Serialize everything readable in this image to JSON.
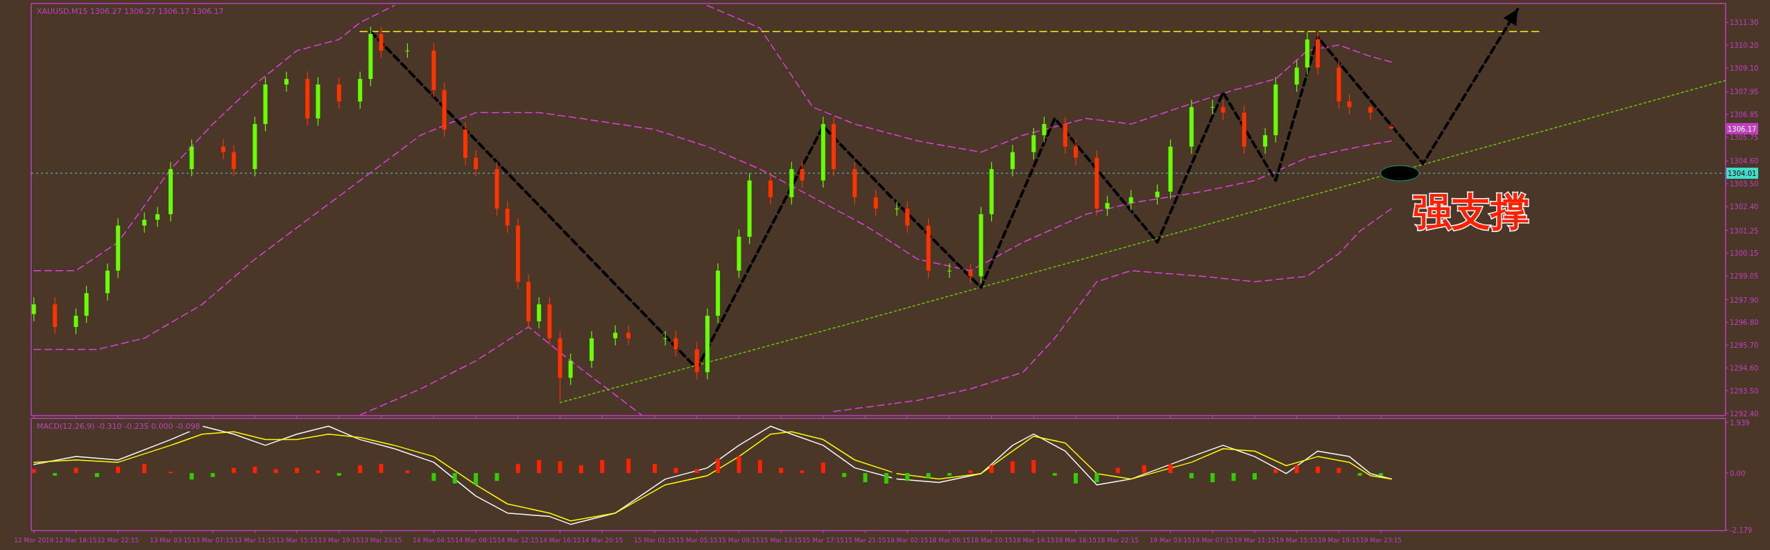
{
  "chart_data": [
    {
      "type": "candlestick",
      "title": "XAUUSD,M15  1306.27 1306.27 1306.17 1306.17",
      "x": [
        "2019-03-12T14:15",
        "2019-03-12T16:15",
        "2019-03-12T18:15",
        "2019-03-12T19:15",
        "2019-03-12T21:15",
        "2019-03-12T22:15",
        "2019-03-13T00:45",
        "2019-03-13T02:00",
        "2019-03-13T03:15",
        "2019-03-13T05:15",
        "2019-03-13T08:15",
        "2019-03-13T09:15",
        "2019-03-13T11:15",
        "2019-03-13T12:15",
        "2019-03-13T14:15",
        "2019-03-13T16:15",
        "2019-03-13T17:15",
        "2019-03-13T19:15",
        "2019-03-13T21:15",
        "2019-03-13T22:15",
        "2019-03-13T23:15",
        "2019-03-14T01:45",
        "2019-03-14T04:15",
        "2019-03-14T05:15",
        "2019-03-14T07:15",
        "2019-03-14T08:15",
        "2019-03-14T10:15",
        "2019-03-14T11:15",
        "2019-03-14T12:15",
        "2019-03-14T13:15",
        "2019-03-14T14:15",
        "2019-03-14T15:15",
        "2019-03-14T16:15",
        "2019-03-14T17:15",
        "2019-03-14T19:15",
        "2019-03-14T21:30",
        "2019-03-14T22:45",
        "2019-03-15T02:15",
        "2019-03-15T03:15",
        "2019-03-15T05:15",
        "2019-03-15T06:15",
        "2019-03-15T07:15",
        "2019-03-15T09:15",
        "2019-03-15T10:15",
        "2019-03-15T12:15",
        "2019-03-15T14:15",
        "2019-03-15T15:15",
        "2019-03-15T17:15",
        "2019-03-15T18:15",
        "2019-03-15T20:15",
        "2019-03-15T22:15"
      ],
      "ohlc": [
        [
          1297.2,
          1298.02,
          1296.85,
          1297.67
        ],
        [
          1297.67,
          1298.02,
          1296.23,
          1296.58
        ],
        [
          1296.58,
          1297.47,
          1296.23,
          1297.12
        ],
        [
          1297.12,
          1298.56,
          1296.77,
          1298.21
        ],
        [
          1298.21,
          1299.65,
          1297.86,
          1299.3
        ],
        [
          1299.3,
          1301.83,
          1298.95,
          1301.48
        ],
        [
          1301.48,
          1302.11,
          1301.13,
          1301.76
        ],
        [
          1301.76,
          1302.38,
          1301.41,
          1302.03
        ],
        [
          1302.03,
          1304.56,
          1301.68,
          1304.21
        ],
        [
          1304.21,
          1305.65,
          1303.86,
          1305.3
        ],
        [
          1305.3,
          1305.65,
          1304.68,
          1305.03
        ],
        [
          1305.03,
          1305.38,
          1303.86,
          1304.21
        ],
        [
          1304.21,
          1306.74,
          1303.86,
          1306.39
        ],
        [
          1306.39,
          1308.65,
          1306.04,
          1308.3
        ],
        [
          1308.3,
          1308.92,
          1307.95,
          1308.57
        ],
        [
          1308.57,
          1308.92,
          1306.31,
          1306.66
        ],
        [
          1306.66,
          1308.65,
          1306.31,
          1308.3
        ],
        [
          1308.3,
          1308.65,
          1307.13,
          1307.48
        ],
        [
          1307.48,
          1308.92,
          1307.13,
          1308.57
        ],
        [
          1308.57,
          1311.1,
          1308.22,
          1310.75
        ],
        [
          1310.75,
          1311.1,
          1309.59,
          1309.94
        ],
        [
          1309.94,
          1310.29,
          1309.59,
          1309.94
        ],
        [
          1309.94,
          1310.29,
          1307.68,
          1308.03
        ],
        [
          1308.03,
          1308.38,
          1305.77,
          1306.12
        ],
        [
          1306.12,
          1306.47,
          1304.41,
          1304.76
        ],
        [
          1304.76,
          1305.11,
          1303.86,
          1304.21
        ],
        [
          1304.21,
          1304.56,
          1301.95,
          1302.3
        ],
        [
          1302.3,
          1302.65,
          1301.13,
          1301.48
        ],
        [
          1301.48,
          1301.83,
          1298.41,
          1298.76
        ],
        [
          1298.76,
          1299.11,
          1296.5,
          1296.85
        ],
        [
          1296.85,
          1298.02,
          1296.5,
          1297.67
        ],
        [
          1297.67,
          1298.02,
          1295.68,
          1296.03
        ],
        [
          1296.03,
          1296.38,
          1293.0,
          1294.12
        ],
        [
          1294.12,
          1295.29,
          1293.77,
          1294.94
        ],
        [
          1294.94,
          1296.38,
          1294.59,
          1296.03
        ],
        [
          1296.03,
          1296.65,
          1295.68,
          1296.3
        ],
        [
          1296.3,
          1296.65,
          1295.68,
          1296.03
        ],
        [
          1296.03,
          1296.38,
          1295.68,
          1296.03
        ],
        [
          1296.03,
          1296.38,
          1295.14,
          1295.49
        ],
        [
          1295.49,
          1295.84,
          1294.04,
          1294.39
        ],
        [
          1294.39,
          1297.47,
          1294.04,
          1297.12
        ],
        [
          1297.12,
          1299.65,
          1296.77,
          1299.3
        ],
        [
          1299.3,
          1301.29,
          1298.95,
          1300.94
        ],
        [
          1300.94,
          1304.01,
          1300.59,
          1303.66
        ],
        [
          1303.66,
          1304.01,
          1302.5,
          1302.85
        ],
        [
          1302.85,
          1304.56,
          1302.5,
          1304.21
        ],
        [
          1304.21,
          1304.56,
          1303.31,
          1303.66
        ],
        [
          1303.66,
          1306.74,
          1303.31,
          1306.39
        ],
        [
          1306.39,
          1306.74,
          1303.86,
          1304.21
        ],
        [
          1304.21,
          1304.56,
          1302.5,
          1302.85
        ],
        [
          1302.85,
          1303.2,
          1301.95,
          1302.3
        ]
      ],
      "colors": [
        "#66ff00",
        "#ff3300",
        "#66ff00",
        "#66ff00",
        "#66ff00",
        "#66ff00",
        "#66ff00",
        "#66ff00",
        "#66ff00",
        "#66ff00",
        "#ff3300",
        "#ff3300",
        "#66ff00",
        "#66ff00",
        "#66ff00",
        "#ff3300",
        "#66ff00",
        "#ff3300",
        "#66ff00",
        "#66ff00",
        "#ff3300",
        "#66ff00",
        "#ff3300",
        "#ff3300",
        "#ff3300",
        "#ff3300",
        "#ff3300",
        "#ff3300",
        "#ff3300",
        "#ff3300",
        "#66ff00",
        "#ff3300",
        "#ff3300",
        "#66ff00",
        "#66ff00",
        "#66ff00",
        "#ff3300",
        "#66ff00",
        "#ff3300",
        "#ff3300",
        "#66ff00",
        "#66ff00",
        "#66ff00",
        "#66ff00",
        "#ff3300",
        "#66ff00",
        "#ff3300",
        "#66ff00",
        "#ff3300",
        "#ff3300",
        "#ff3300"
      ],
      "series": [
        {
          "type": "line",
          "color": "#e040e0",
          "line_style": "dashed",
          "x": [
            "2019-03-12T14:15",
            "2019-03-12T18:15",
            "2019-03-12T22:15",
            "2019-03-13T03:15",
            "2019-03-13T07:15",
            "2019-03-13T11:15",
            "2019-03-13T15:15",
            "2019-03-13T19:15",
            "2019-03-13T21:15",
            "2019-03-14T00:30",
            "2019-03-14T08:15",
            "2019-03-15T06:15",
            "2019-03-15T11:15",
            "2019-03-15T16:15",
            "2019-03-15T20:15",
            "2019-03-15T23:45"
          ],
          "values": [
            1299.3,
            1299.3,
            1300.67,
            1304.21,
            1306.39,
            1308.3,
            1309.94,
            1310.48,
            1311.3,
            1312.12,
            null,
            1312.12,
            1311.03,
            1307.21,
            1306.39,
            1305.91
          ]
        },
        {
          "type": "line",
          "color": "#e040e0",
          "line_style": "dashed",
          "x": [
            "2019-03-12T14:15",
            "2019-03-12T20:15",
            "2019-03-13T00:45",
            "2019-03-13T06:15",
            "2019-03-13T11:15",
            "2019-03-13T16:15",
            "2019-03-13T21:15",
            "2019-03-14T03:00",
            "2019-03-14T08:15",
            "2019-03-14T14:15",
            "2019-03-14T18:15",
            "2019-03-15T01:15",
            "2019-03-15T06:15",
            "2019-03-15T11:15",
            "2019-03-15T16:15",
            "2019-03-15T21:15",
            "2019-03-15T23:45"
          ],
          "values": [
            1295.49,
            1295.49,
            1296.03,
            1297.67,
            1299.85,
            1301.76,
            1303.66,
            1305.85,
            1306.94,
            1306.94,
            1306.66,
            1306.12,
            1305.3,
            1304.21,
            1302.85,
            1301.48,
            1300.67
          ]
        },
        {
          "type": "line",
          "color": "#e040e0",
          "line_style": "dashed",
          "x": [
            "2019-03-13T21:15",
            "2019-03-14T03:00",
            "2019-03-14T08:15",
            "2019-03-14T13:15",
            "2019-03-14T17:15",
            "2019-03-15T00:00",
            "2019-03-15T06:15",
            "2019-03-15T18:15",
            "2019-03-15T23:45"
          ],
          "values": [
            1292.32,
            1293.58,
            1294.94,
            1296.58,
            1294.94,
            1292.32,
            null,
            1292.49,
            1292.86
          ]
        },
        {
          "type": "line",
          "color": "#66cc00",
          "line_style": "dotted",
          "x": [
            "2019-03-14T16:15",
            "2019-03-15T23:45"
          ],
          "values": [
            1292.92,
            1297.29
          ]
        },
        {
          "type": "line",
          "color": "#ffff00",
          "line_style": "dashed",
          "x": [
            "2019-03-13T21:15",
            "2019-03-15T23:45"
          ],
          "values": [
            1310.86,
            1310.86
          ]
        },
        {
          "type": "line",
          "color": "#000000",
          "line_style": "dashed",
          "x": [
            "2019-03-13T22:15",
            "2019-03-15T05:15",
            "2019-03-15T17:15",
            "2019-03-15T23:45"
          ],
          "values": [
            1310.86,
            1294.56,
            1306.28,
            1302.84
          ]
        }
      ],
      "ref_lines": [
        {
          "axis": "y",
          "value": 1304.01,
          "color": "#40e0d0",
          "line_style": "dotted"
        }
      ],
      "xlim": [
        "2019-03-12T14:00",
        "2019-03-16T00:00"
      ],
      "ylim": [
        1292.29,
        1312.22
      ],
      "xticks": [
        {
          "value": "2019-03-12T14:15",
          "label": null
        },
        {
          "value": "2019-03-12T18:15",
          "label": null
        },
        {
          "value": "2019-03-12T22:15",
          "label": null
        },
        {
          "value": "2019-03-13T03:15",
          "label": null
        },
        {
          "value": "2019-03-13T07:15",
          "label": null
        },
        {
          "value": "2019-03-13T11:15",
          "label": null
        },
        {
          "value": "2019-03-13T15:15",
          "label": null
        },
        {
          "value": "2019-03-13T19:15",
          "label": null
        },
        {
          "value": "2019-03-13T23:15",
          "label": null
        },
        {
          "value": "2019-03-14T04:15",
          "label": null
        },
        {
          "value": "2019-03-14T08:15",
          "label": null
        },
        {
          "value": "2019-03-14T12:15",
          "label": null
        },
        {
          "value": "2019-03-14T16:15",
          "label": null
        },
        {
          "value": "2019-03-14T20:15",
          "label": null
        },
        {
          "value": "2019-03-15T01:15",
          "label": null
        },
        {
          "value": "2019-03-15T05:15",
          "label": null
        },
        {
          "value": "2019-03-15T09:15",
          "label": null
        },
        {
          "value": "2019-03-15T13:15",
          "label": null
        },
        {
          "value": "2019-03-15T17:15",
          "label": null
        },
        {
          "value": "2019-03-15T21:15",
          "label": null
        }
      ],
      "tick_labels": false
    },
    {
      "type": "candlestick",
      "x": [
        "2019-03-18T01:15",
        "2019-03-18T02:15",
        "2019-03-18T04:15",
        "2019-03-18T06:15",
        "2019-03-18T08:15",
        "2019-03-18T09:15",
        "2019-03-18T10:15",
        "2019-03-18T12:15",
        "2019-03-18T14:15",
        "2019-03-18T15:15",
        "2019-03-18T17:15",
        "2019-03-18T18:15",
        "2019-03-18T20:15",
        "2019-03-18T21:15",
        "2019-03-18T23:30",
        "2019-03-19T02:00",
        "2019-03-19T03:15",
        "2019-03-19T05:15",
        "2019-03-19T07:15",
        "2019-03-19T08:15",
        "2019-03-19T10:15",
        "2019-03-19T12:15",
        "2019-03-19T13:15",
        "2019-03-19T15:15",
        "2019-03-19T16:15",
        "2019-03-19T17:15",
        "2019-03-19T19:15",
        "2019-03-19T20:15",
        "2019-03-19T22:15",
        "2019-03-20T00:15"
      ],
      "ohlc": [
        [
          1302.3,
          1302.65,
          1301.95,
          1302.3
        ],
        [
          1302.3,
          1302.65,
          1301.13,
          1301.48
        ],
        [
          1301.48,
          1301.83,
          1298.95,
          1299.3
        ],
        [
          1299.3,
          1299.65,
          1298.95,
          1299.3
        ],
        [
          1299.3,
          1299.65,
          1298.68,
          1299.03
        ],
        [
          1299.03,
          1302.38,
          1298.68,
          1302.03
        ],
        [
          1302.03,
          1304.56,
          1301.68,
          1304.21
        ],
        [
          1304.21,
          1305.38,
          1303.86,
          1305.03
        ],
        [
          1305.03,
          1306.2,
          1304.68,
          1305.85
        ],
        [
          1305.85,
          1306.74,
          1305.5,
          1306.39
        ],
        [
          1306.39,
          1306.74,
          1304.95,
          1305.3
        ],
        [
          1305.3,
          1305.65,
          1304.41,
          1304.76
        ],
        [
          1304.76,
          1305.11,
          1301.95,
          1302.3
        ],
        [
          1302.3,
          1302.92,
          1301.95,
          1302.57
        ],
        [
          1302.57,
          1303.2,
          1302.22,
          1302.85
        ],
        [
          1302.85,
          1303.47,
          1302.5,
          1303.12
        ],
        [
          1303.12,
          1305.65,
          1302.77,
          1305.3
        ],
        [
          1305.3,
          1307.56,
          1304.95,
          1307.21
        ],
        [
          1307.21,
          1307.56,
          1306.86,
          1307.21
        ],
        [
          1307.21,
          1307.56,
          1306.59,
          1306.94
        ],
        [
          1306.94,
          1307.29,
          1304.95,
          1305.3
        ],
        [
          1305.3,
          1306.2,
          1304.95,
          1305.85
        ],
        [
          1305.85,
          1308.65,
          1305.5,
          1308.3
        ],
        [
          1308.3,
          1309.47,
          1307.95,
          1309.12
        ],
        [
          1309.12,
          1310.83,
          1308.77,
          1310.48
        ],
        [
          1310.48,
          1310.83,
          1308.77,
          1309.12
        ],
        [
          1309.12,
          1309.47,
          1307.13,
          1307.48
        ],
        [
          1307.48,
          1307.83,
          1306.86,
          1307.21
        ],
        [
          1307.21,
          1307.29,
          1306.59,
          1306.94
        ],
        [
          1306.27,
          1306.27,
          1306.17,
          1306.17
        ]
      ],
      "colors": [
        "#66ff00",
        "#ff3300",
        "#ff3300",
        "#66ff00",
        "#ff3300",
        "#66ff00",
        "#66ff00",
        "#66ff00",
        "#66ff00",
        "#66ff00",
        "#ff3300",
        "#ff3300",
        "#ff3300",
        "#66ff00",
        "#66ff00",
        "#66ff00",
        "#66ff00",
        "#66ff00",
        "#66ff00",
        "#ff3300",
        "#ff3300",
        "#66ff00",
        "#66ff00",
        "#66ff00",
        "#66ff00",
        "#ff3300",
        "#ff3300",
        "#ff3300",
        "#ff3300",
        "#ff3300"
      ],
      "series": [
        {
          "type": "line",
          "color": "#e040e0",
          "line_style": "dashed",
          "x": [
            "2019-03-18T01:00",
            "2019-03-18T03:15",
            "2019-03-18T09:15",
            "2019-03-18T13:15",
            "2019-03-18T19:15",
            "2019-03-18T23:30",
            "2019-03-19T04:15",
            "2019-03-19T09:15",
            "2019-03-19T13:15",
            "2019-03-19T16:15",
            "2019-03-19T19:15",
            "2019-03-19T22:15",
            "2019-03-20T00:15"
          ],
          "values": [
            1305.88,
            1305.57,
            1305.03,
            1305.85,
            1306.66,
            1306.39,
            1307.21,
            1308.03,
            1308.57,
            1309.94,
            1310.21,
            1309.66,
            1309.39
          ]
        },
        {
          "type": "line",
          "color": "#e040e0",
          "line_style": "dashed",
          "x": [
            "2019-03-18T01:00",
            "2019-03-18T03:15",
            "2019-03-18T08:15",
            "2019-03-18T13:15",
            "2019-03-18T19:15",
            "2019-03-18T23:30",
            "2019-03-19T06:15",
            "2019-03-19T11:15",
            "2019-03-19T16:15",
            "2019-03-19T21:15",
            "2019-03-20T00:15"
          ],
          "values": [
            1300.59,
            1299.85,
            1299.3,
            1300.67,
            1302.03,
            1302.57,
            1303.12,
            1303.66,
            1304.76,
            1305.3,
            1305.57
          ]
        },
        {
          "type": "line",
          "color": "#e040e0",
          "line_style": "dashed",
          "x": [
            "2019-03-18T01:00",
            "2019-03-18T03:15",
            "2019-03-18T08:15",
            "2019-03-18T13:15",
            "2019-03-18T16:15",
            "2019-03-18T20:15",
            "2019-03-18T23:30",
            "2019-03-19T06:15",
            "2019-03-19T11:15",
            "2019-03-19T16:15",
            "2019-03-19T19:15",
            "2019-03-19T21:15",
            "2019-03-20T00:15"
          ],
          "values": [
            1292.88,
            1293.03,
            1293.58,
            1294.39,
            1296.03,
            1298.76,
            1299.3,
            1299.03,
            1298.76,
            1299.03,
            1300.12,
            1301.21,
            1302.3
          ]
        },
        {
          "type": "line",
          "color": "#66cc00",
          "line_style": "dotted",
          "x": [
            "2019-03-18T01:00",
            "2019-03-21T08:00"
          ],
          "values": [
            1297.33,
            1308.5
          ]
        },
        {
          "type": "line",
          "color": "#ffff00",
          "line_style": "dashed",
          "x": [
            "2019-03-18T01:00",
            "2019-03-20T14:15"
          ],
          "values": [
            1310.86,
            1310.86
          ]
        },
        {
          "type": "line",
          "color": "#000000",
          "line_style": "dashed",
          "x": [
            "2019-03-18T01:00",
            "2019-03-18T09:15",
            "2019-03-18T16:15",
            "2019-03-19T02:00",
            "2019-03-19T08:15",
            "2019-03-19T13:15",
            "2019-03-19T17:15",
            "2019-03-20T03:15",
            "2019-03-20T12:15"
          ],
          "values": [
            1302.71,
            1298.48,
            1306.66,
            1300.67,
            1307.92,
            1303.66,
            1310.59,
            1304.48,
            1311.95
          ]
        }
      ],
      "ref_lines": [
        {
          "axis": "y",
          "value": 1304.01,
          "label": "1304.01",
          "color": "#40e0d0",
          "line_style": "dotted"
        }
      ],
      "annotations": [
        "1306.17",
        "强支撑"
      ],
      "xlim": [
        "2019-03-18T01:00",
        "2019-03-21T08:00"
      ],
      "ylim": [
        1292.29,
        1312.22
      ],
      "xticks": [
        {
          "value": "2019-03-18T02:15",
          "label": null
        },
        {
          "value": "2019-03-18T06:15",
          "label": null
        },
        {
          "value": "2019-03-18T10:15",
          "label": null
        },
        {
          "value": "2019-03-18T14:15",
          "label": null
        },
        {
          "value": "2019-03-18T18:15",
          "label": null
        },
        {
          "value": "2019-03-18T22:15",
          "label": null
        },
        {
          "value": "2019-03-19T03:15",
          "label": null
        },
        {
          "value": "2019-03-19T07:15",
          "label": null
        },
        {
          "value": "2019-03-19T11:15",
          "label": null
        },
        {
          "value": "2019-03-19T15:15",
          "label": null
        },
        {
          "value": "2019-03-19T19:15",
          "label": null
        },
        {
          "value": "2019-03-19T23:15",
          "label": null
        }
      ],
      "yticks": [
        {
          "value": 1311.3,
          "label": "1311.30"
        },
        {
          "value": 1310.2,
          "label": "1310.20"
        },
        {
          "value": 1309.1,
          "label": "1309.10"
        },
        1307.95,
        1306.85,
        1305.75,
        {
          "value": 1304.6,
          "label": "1304.60"
        },
        {
          "value": 1303.5,
          "label": "1303.50"
        },
        {
          "value": 1302.4,
          "label": "1302.40"
        },
        1301.25,
        1300.15,
        1299.05,
        {
          "value": 1297.9,
          "label": "1297.90"
        },
        {
          "value": 1296.8,
          "label": "1296.80"
        },
        {
          "value": 1295.7,
          "label": "1295.70"
        },
        {
          "value": 1294.6,
          "label": "1294.60"
        },
        {
          "value": 1293.5,
          "label": "1293.50"
        },
        {
          "value": 1292.4,
          "label": "1292.40"
        }
      ],
      "tick_labels": "y"
    },
    {
      "type": "bar",
      "title": "MACD(12,26,9) -0.310 -0.235 0.000 -0.098",
      "x": [
        "2019-03-12T14:15",
        "2019-03-12T16:15",
        "2019-03-12T18:15",
        "2019-03-12T20:15",
        "2019-03-12T22:15",
        "2019-03-13T00:45",
        "2019-03-13T03:15",
        "2019-03-13T05:15",
        "2019-03-13T07:15",
        "2019-03-13T09:15",
        "2019-03-13T11:15",
        "2019-03-13T13:15",
        "2019-03-13T15:15",
        "2019-03-13T17:15",
        "2019-03-13T19:15",
        "2019-03-13T21:15",
        "2019-03-13T23:15",
        "2019-03-14T01:45",
        "2019-03-14T04:15",
        "2019-03-14T06:15",
        "2019-03-14T08:15",
        "2019-03-14T10:15",
        "2019-03-14T12:15",
        "2019-03-14T14:15",
        "2019-03-14T16:15",
        "2019-03-14T18:15",
        "2019-03-14T20:15",
        "2019-03-14T22:45",
        "2019-03-15T01:15",
        "2019-03-15T03:15",
        "2019-03-15T05:15",
        "2019-03-15T07:15",
        "2019-03-15T09:15",
        "2019-03-15T11:15",
        "2019-03-15T13:15",
        "2019-03-15T15:15",
        "2019-03-15T17:15",
        "2019-03-15T19:15",
        "2019-03-15T21:15",
        "2019-03-15T23:15"
      ],
      "values": [
        0.15,
        -0.1,
        0.2,
        -0.15,
        0.25,
        0.35,
        0.05,
        -0.25,
        -0.15,
        0.2,
        0.25,
        0.15,
        0.2,
        0.1,
        -0.1,
        0.3,
        0.35,
        0.1,
        -0.3,
        -0.4,
        -0.45,
        -0.3,
        0.35,
        0.5,
        0.45,
        0.3,
        0.5,
        0.55,
        0.35,
        0.2,
        0.15,
        0.55,
        0.65,
        0.5,
        0.2,
        0.1,
        0.4,
        -0.15,
        -0.35,
        -0.4
      ],
      "colors": [
        "#ff2200",
        "#33cc00",
        "#ff2200",
        "#33cc00",
        "#ff2200",
        "#ff2200",
        "#ff2200",
        "#33cc00",
        "#33cc00",
        "#ff2200",
        "#ff2200",
        "#ff2200",
        "#ff2200",
        "#ff2200",
        "#33cc00",
        "#ff2200",
        "#ff2200",
        "#ff2200",
        "#33cc00",
        "#33cc00",
        "#33cc00",
        "#33cc00",
        "#ff2200",
        "#ff2200",
        "#ff2200",
        "#ff2200",
        "#ff2200",
        "#ff2200",
        "#ff2200",
        "#ff2200",
        "#ff2200",
        "#ff2200",
        "#ff2200",
        "#ff2200",
        "#ff2200",
        "#ff2200",
        "#ff2200",
        "#33cc00",
        "#33cc00",
        "#33cc00"
      ],
      "series": [
        {
          "type": "line",
          "color": "#ffffff",
          "x": [
            "2019-03-12T14:15",
            "2019-03-12T18:15",
            "2019-03-12T22:15",
            "2019-03-13T03:15",
            "2019-03-13T06:15",
            "2019-03-13T09:15",
            "2019-03-13T12:15",
            "2019-03-13T15:15",
            "2019-03-13T18:15",
            "2019-03-13T21:15",
            "2019-03-14T00:30",
            "2019-03-14T04:15",
            "2019-03-14T08:15",
            "2019-03-14T11:15",
            "2019-03-14T15:15",
            "2019-03-14T17:15",
            "2019-03-14T21:30",
            "2019-03-15T02:15",
            "2019-03-15T06:15",
            "2019-03-15T09:15",
            "2019-03-15T12:15",
            "2019-03-15T14:15",
            "2019-03-15T17:15",
            "2019-03-15T20:15",
            "2019-03-15T23:45"
          ],
          "values": [
            0.33,
            0.63,
            0.5,
            1.28,
            1.79,
            1.49,
            1.06,
            1.49,
            1.79,
            1.28,
            0.93,
            0.41,
            -0.88,
            -1.53,
            -1.66,
            -1.96,
            -1.53,
            -0.23,
            0.2,
            1.06,
            1.79,
            1.49,
            1.06,
            0.2,
            -0.18
          ]
        },
        {
          "type": "line",
          "color": "#ffff00",
          "x": [
            "2019-03-12T14:15",
            "2019-03-12T18:15",
            "2019-03-12T22:15",
            "2019-03-13T03:15",
            "2019-03-13T06:15",
            "2019-03-13T09:15",
            "2019-03-13T12:15",
            "2019-03-13T15:15",
            "2019-03-13T18:15",
            "2019-03-13T21:15",
            "2019-03-14T00:30",
            "2019-03-14T04:15",
            "2019-03-14T08:15",
            "2019-03-14T11:15",
            "2019-03-14T15:15",
            "2019-03-14T17:15",
            "2019-03-14T21:30",
            "2019-03-15T02:15",
            "2019-03-15T06:15",
            "2019-03-15T09:15",
            "2019-03-15T12:15",
            "2019-03-15T14:15",
            "2019-03-15T17:15",
            "2019-03-15T20:15",
            "2019-03-15T23:45"
          ],
          "values": [
            0.41,
            0.5,
            0.41,
            1.06,
            1.49,
            1.58,
            1.28,
            1.28,
            1.49,
            1.36,
            1.06,
            0.63,
            -0.45,
            -1.18,
            -1.53,
            -1.83,
            -1.53,
            -0.45,
            -0.1,
            0.63,
            1.49,
            1.58,
            1.28,
            0.5,
            0.04
          ]
        }
      ],
      "xlim": [
        "2019-03-12T14:00",
        "2019-03-16T00:00"
      ],
      "ylim": [
        -2.2,
        2.09
      ],
      "xticks": [
        {
          "value": "2019-03-12T14:15",
          "label": "12 Mar 2019"
        },
        {
          "value": "2019-03-12T18:15",
          "label": "12 Mar 18:15"
        },
        {
          "value": "2019-03-12T22:15",
          "label": "12 Mar 22:15"
        },
        {
          "value": "2019-03-13T03:15",
          "label": "13 Mar 03:15"
        },
        {
          "value": "2019-03-13T07:15",
          "label": "13 Mar 07:15"
        },
        {
          "value": "2019-03-13T11:15",
          "label": "13 Mar 11:15"
        },
        {
          "value": "2019-03-13T15:15",
          "label": "13 Mar 15:15"
        },
        {
          "value": "2019-03-13T19:15",
          "label": "13 Mar 19:15"
        },
        {
          "value": "2019-03-13T23:15",
          "label": "13 Mar 23:15"
        },
        {
          "value": "2019-03-14T04:15",
          "label": "14 Mar 04:15"
        },
        {
          "value": "2019-03-14T08:15",
          "label": "14 Mar 08:15"
        },
        {
          "value": "2019-03-14T12:15",
          "label": "14 Mar 12:15"
        },
        {
          "value": "2019-03-14T16:15",
          "label": "14 Mar 16:15"
        },
        {
          "value": "2019-03-14T20:15",
          "label": "14 Mar 20:15"
        },
        {
          "value": "2019-03-15T01:15",
          "label": "15 Mar 01:15"
        },
        {
          "value": "2019-03-15T05:15",
          "label": "15 Mar 05:15"
        },
        {
          "value": "2019-03-15T09:15",
          "label": "15 Mar 09:15"
        },
        {
          "value": "2019-03-15T13:15",
          "label": "15 Mar 13:15"
        },
        {
          "value": "2019-03-15T17:15",
          "label": "15 Mar 17:15"
        },
        {
          "value": "2019-03-15T21:15",
          "label": "15 Mar 21:15"
        }
      ],
      "tick_labels": "x"
    },
    {
      "type": "bar",
      "x": [
        "2019-03-18T02:15",
        "2019-03-18T04:15",
        "2019-03-18T06:15",
        "2019-03-18T08:15",
        "2019-03-18T10:15",
        "2019-03-18T12:15",
        "2019-03-18T14:15",
        "2019-03-18T16:15",
        "2019-03-18T18:15",
        "2019-03-18T20:15",
        "2019-03-18T22:15",
        "2019-03-19T00:45",
        "2019-03-19T03:15",
        "2019-03-19T05:15",
        "2019-03-19T07:15",
        "2019-03-19T09:15",
        "2019-03-19T11:15",
        "2019-03-19T13:15",
        "2019-03-19T15:15",
        "2019-03-19T17:15",
        "2019-03-19T19:15",
        "2019-03-19T21:15",
        "2019-03-19T23:15"
      ],
      "values": [
        -0.3,
        -0.2,
        -0.1,
        0.1,
        0.3,
        0.45,
        0.5,
        -0.1,
        -0.4,
        -0.35,
        0.2,
        0.3,
        0.35,
        -0.2,
        -0.35,
        -0.3,
        -0.25,
        0.15,
        0.3,
        0.25,
        0.2,
        -0.1,
        -0.1
      ],
      "colors": [
        "#33cc00",
        "#33cc00",
        "#33cc00",
        "#ff2200",
        "#ff2200",
        "#ff2200",
        "#ff2200",
        "#33cc00",
        "#33cc00",
        "#33cc00",
        "#ff2200",
        "#ff2200",
        "#ff2200",
        "#33cc00",
        "#33cc00",
        "#33cc00",
        "#33cc00",
        "#ff2200",
        "#ff2200",
        "#ff2200",
        "#ff2200",
        "#33cc00",
        "#33cc00"
      ],
      "series": [
        {
          "type": "line",
          "color": "#ffffff",
          "x": [
            "2019-03-18T01:15",
            "2019-03-18T05:15",
            "2019-03-18T09:15",
            "2019-03-18T12:15",
            "2019-03-18T14:15",
            "2019-03-18T17:15",
            "2019-03-18T20:15",
            "2019-03-18T23:30",
            "2019-03-19T05:15",
            "2019-03-19T08:15",
            "2019-03-19T11:15",
            "2019-03-19T14:15",
            "2019-03-19T17:15",
            "2019-03-19T20:15",
            "2019-03-19T22:15",
            "2019-03-20T00:15"
          ],
          "values": [
            -0.23,
            -0.36,
            -0.02,
            1.06,
            1.49,
            0.84,
            -0.45,
            -0.23,
            0.63,
            1.06,
            0.63,
            -0.02,
            0.84,
            0.63,
            -0.02,
            -0.23
          ]
        },
        {
          "type": "line",
          "color": "#ffff00",
          "x": [
            "2019-03-18T01:15",
            "2019-03-18T05:15",
            "2019-03-18T09:15",
            "2019-03-18T12:15",
            "2019-03-18T14:15",
            "2019-03-18T17:15",
            "2019-03-18T20:15",
            "2019-03-18T23:30",
            "2019-03-19T05:15",
            "2019-03-19T08:15",
            "2019-03-19T11:15",
            "2019-03-19T14:15",
            "2019-03-19T17:15",
            "2019-03-19T20:15",
            "2019-03-19T22:15",
            "2019-03-20T00:15"
          ],
          "values": [
            -0.02,
            -0.23,
            -0.02,
            0.84,
            1.41,
            1.15,
            -0.02,
            -0.23,
            0.41,
            0.93,
            0.84,
            0.28,
            0.63,
            0.41,
            -0.1,
            -0.23
          ]
        }
      ],
      "xlim": [
        "2019-03-18T01:00",
        "2019-03-21T08:00"
      ],
      "ylim": [
        -2.2,
        2.09
      ],
      "xticks": [
        {
          "value": "2019-03-18T02:15",
          "label": "18 Mar 02:15"
        },
        {
          "value": "2019-03-18T06:15",
          "label": "18 Mar 06:15"
        },
        {
          "value": "2019-03-18T10:15",
          "label": "18 Mar 10:15"
        },
        {
          "value": "2019-03-18T14:15",
          "label": "18 Mar 14:15"
        },
        {
          "value": "2019-03-18T18:15",
          "label": "18 Mar 18:15"
        },
        {
          "value": "2019-03-18T22:15",
          "label": "18 Mar 22:15"
        },
        {
          "value": "2019-03-19T03:15",
          "label": "19 Mar 03:15"
        },
        {
          "value": "2019-03-19T07:15",
          "label": "19 Mar 07:15"
        },
        {
          "value": "2019-03-19T11:15",
          "label": "19 Mar 11:15"
        },
        {
          "value": "2019-03-19T15:15",
          "label": "19 Mar 15:15"
        },
        {
          "value": "2019-03-19T19:15",
          "label": "19 Mar 19:15"
        },
        {
          "value": "2019-03-19T23:15",
          "label": "19 Mar 23:15"
        }
      ],
      "yticks": [
        1.939,
        {
          "value": 0,
          "label": "0.00"
        },
        -2.179
      ]
    }
  ]
}
